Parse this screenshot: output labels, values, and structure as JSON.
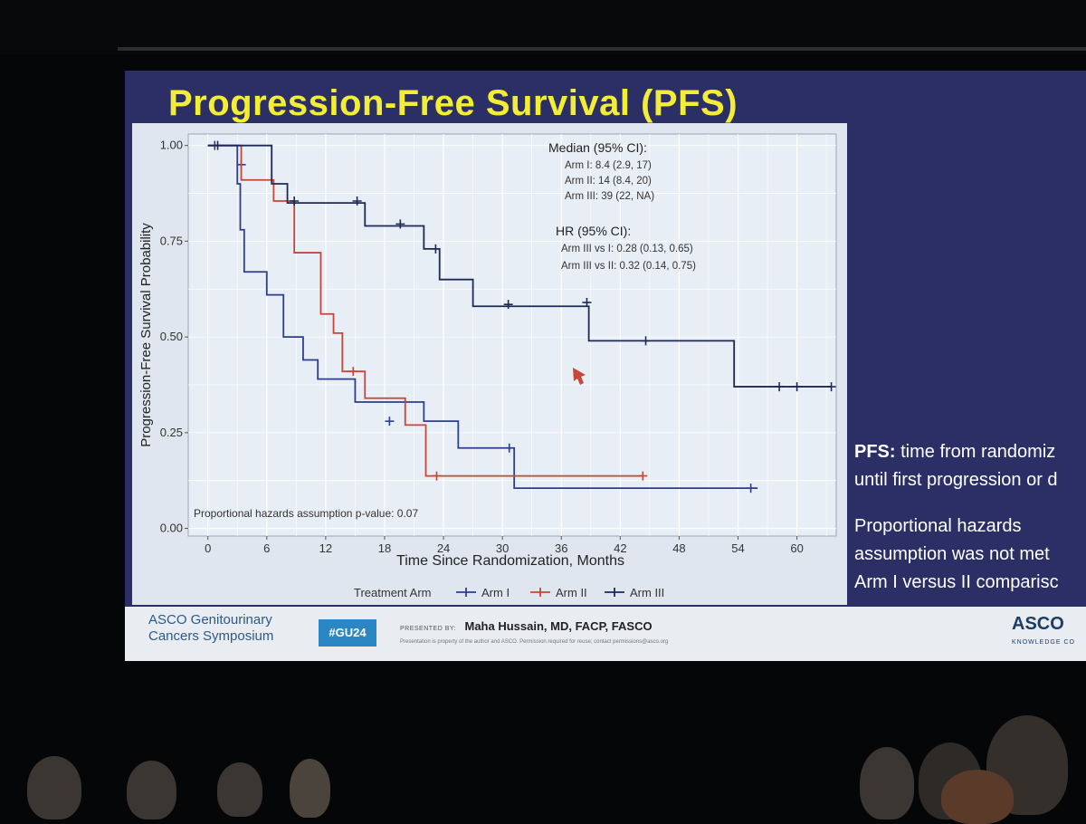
{
  "slide": {
    "title": "Progression-Free Survival (PFS)",
    "side_text": [
      {
        "bold": "PFS:",
        "text": " time from randomiz"
      },
      {
        "bold": "",
        "text": "until first progression or d"
      },
      {
        "bold": "",
        "text": "Proportional hazards"
      },
      {
        "bold": "",
        "text": "assumption was not met"
      },
      {
        "bold": "",
        "text": "Arm I versus II comparisc"
      }
    ]
  },
  "chart_data": {
    "type": "line",
    "subtype": "kaplan-meier",
    "xlabel": "Time Since Randomization, Months",
    "ylabel": "Progression-Free Survival Probability",
    "xlim": [
      -2,
      64
    ],
    "ylim": [
      -0.02,
      1.03
    ],
    "x_ticks": [
      0,
      6,
      12,
      18,
      24,
      30,
      36,
      42,
      48,
      54,
      60
    ],
    "x_tick_labels": [
      "0",
      "6",
      "12",
      "18",
      "24",
      "30",
      "36",
      "42",
      "48",
      "54",
      "60"
    ],
    "y_ticks": [
      0,
      0.25,
      0.5,
      0.75,
      1.0
    ],
    "y_tick_labels": [
      "0.00",
      "0.25",
      "0.50",
      "0.75",
      "1.00"
    ],
    "legend_title": "Treatment Arm",
    "legend_position": "bottom",
    "series": [
      {
        "name": "Arm I",
        "color": "#2c3f8c",
        "steps": [
          [
            0,
            1.0
          ],
          [
            3,
            0.9
          ],
          [
            3.3,
            0.78
          ],
          [
            3.7,
            0.67
          ],
          [
            6,
            0.61
          ],
          [
            7.7,
            0.5
          ],
          [
            9.7,
            0.44
          ],
          [
            11.2,
            0.39
          ],
          [
            15,
            0.33
          ],
          [
            17,
            0.33
          ],
          [
            22,
            0.28
          ],
          [
            25.5,
            0.21
          ],
          [
            31,
            0.21
          ],
          [
            31.2,
            0.105
          ],
          [
            56,
            0.105
          ]
        ],
        "censored": [
          [
            0.7,
            1.0
          ],
          [
            3.4,
            0.95
          ],
          [
            18.5,
            0.28
          ],
          [
            30.7,
            0.21
          ],
          [
            55.3,
            0.105
          ]
        ]
      },
      {
        "name": "Arm II",
        "color": "#c8453a",
        "steps": [
          [
            0,
            1.0
          ],
          [
            3.4,
            0.91
          ],
          [
            6.7,
            0.855
          ],
          [
            8.8,
            0.72
          ],
          [
            11.5,
            0.56
          ],
          [
            12.8,
            0.51
          ],
          [
            13.7,
            0.41
          ],
          [
            16,
            0.34
          ],
          [
            20.1,
            0.27
          ],
          [
            22.2,
            0.137
          ],
          [
            44.3,
            0.137
          ]
        ],
        "censored": [
          [
            14.8,
            0.41
          ],
          [
            23.3,
            0.137
          ],
          [
            44.3,
            0.137
          ]
        ]
      },
      {
        "name": "Arm III",
        "color": "#1e2a55",
        "steps": [
          [
            0,
            1.0
          ],
          [
            6.5,
            0.9
          ],
          [
            8.1,
            0.85
          ],
          [
            16,
            0.79
          ],
          [
            22,
            0.73
          ],
          [
            23.6,
            0.65
          ],
          [
            27,
            0.58
          ],
          [
            36.8,
            0.58
          ],
          [
            38.8,
            0.49
          ],
          [
            52,
            0.49
          ],
          [
            53.6,
            0.37
          ],
          [
            63.5,
            0.37
          ]
        ],
        "censored": [
          [
            1,
            1.0
          ],
          [
            8.8,
            0.855
          ],
          [
            15.2,
            0.855
          ],
          [
            19.6,
            0.795
          ],
          [
            23.2,
            0.73
          ],
          [
            30.6,
            0.585
          ],
          [
            38.6,
            0.59
          ],
          [
            44.6,
            0.49
          ],
          [
            58.2,
            0.37
          ],
          [
            60,
            0.37
          ],
          [
            63.5,
            0.37
          ]
        ]
      }
    ],
    "annotations": {
      "median_title": "Median (95% CI):",
      "median_lines": [
        "Arm I:  8.4 (2.9, 17)",
        "Arm II:  14 (8.4, 20)",
        "Arm III: 39 (22, NA)"
      ],
      "hr_title": "HR (95% CI):",
      "hr_lines": [
        "Arm III vs I:  0.28 (0.13, 0.65)",
        "Arm III vs II: 0.32 (0.14, 0.75)"
      ],
      "ph_note": "Proportional hazards assumption p-value: 0.07"
    }
  },
  "footer": {
    "org_line1": "ASCO Genitourinary",
    "org_line2": "Cancers Symposium",
    "hashtag": "#GU24",
    "presented_by_label": "PRESENTED BY:",
    "presenter": "Maha Hussain, MD, FACP, FASCO",
    "footnote": "Presentation is property of the author and ASCO. Permission required for reuse; contact permissions@asco.org",
    "right_brand": "ASCO",
    "right_sub": "KNOWLEDGE CO"
  }
}
